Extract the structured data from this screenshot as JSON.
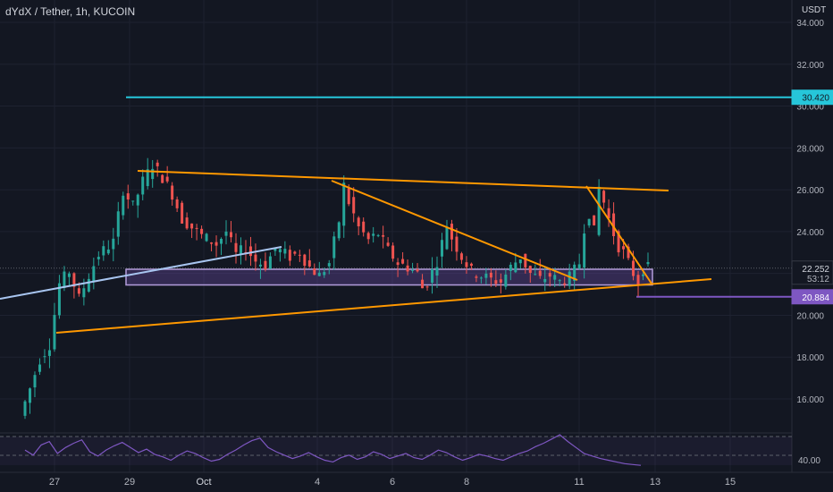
{
  "header": {
    "title": "dYdX / Tether, 1h, KUCOIN"
  },
  "price_axis": {
    "unit": "USDT"
  },
  "colors": {
    "background": "#131722",
    "grid": "#1e2230",
    "up": "#26a69a",
    "down": "#ef5350",
    "trend": "#ff9800",
    "resistance": "#26c6da",
    "support": "#7e57c2",
    "range_box": "#7e57c2",
    "blue_line": "#a8c5f0",
    "rsi": "#7e57c2",
    "axis_text": "#b2b5be"
  },
  "chart_data": {
    "type": "candlestick",
    "title": "dYdX / Tether, 1h, KUCOIN",
    "ylabel": "USDT",
    "y_ticks": [
      "16.000",
      "18.000",
      "20.000",
      "22.000",
      "24.000",
      "26.000",
      "28.000",
      "30.000",
      "32.000",
      "34.000"
    ],
    "x_ticks": [
      "27",
      "29",
      "Oct",
      "4",
      "6",
      "8",
      "11",
      "13",
      "15"
    ],
    "ylim": [
      14.5,
      35.0
    ],
    "price_labels": [
      {
        "value": "30.420",
        "color": "#26c6da",
        "text": "#131722"
      },
      {
        "value": "22.252",
        "color": "#131722",
        "text": "#d1d4dc",
        "sub": "53:12"
      },
      {
        "value": "20.884",
        "color": "#7e57c2",
        "text": "#ffffff"
      }
    ],
    "levels": [
      {
        "name": "resistance",
        "value": 30.42,
        "x_start": "Sep 29",
        "x_end": "Oct 15+"
      },
      {
        "name": "support",
        "value": 20.884,
        "x_start": "Oct 12",
        "x_end": "Oct 15+"
      }
    ],
    "range_box": {
      "top": 22.2,
      "bottom": 21.45,
      "x_start": "Sep 29",
      "x_end": "Oct 12"
    },
    "price_path": [
      [
        0,
        15.2
      ],
      [
        2,
        16.5
      ],
      [
        4,
        17.9
      ],
      [
        6,
        18.6
      ],
      [
        8,
        21.5
      ],
      [
        10,
        22.1
      ],
      [
        12,
        20.8
      ],
      [
        14,
        21.9
      ],
      [
        16,
        22.9
      ],
      [
        19,
        23.5
      ],
      [
        21,
        26.0
      ],
      [
        23,
        25.2
      ],
      [
        25,
        26.4
      ],
      [
        27,
        27.2
      ],
      [
        29,
        26.6
      ],
      [
        31,
        25.8
      ],
      [
        33,
        24.6
      ],
      [
        35,
        24.2
      ],
      [
        37,
        23.8
      ],
      [
        40,
        23.4
      ],
      [
        42,
        24.0
      ],
      [
        44,
        22.9
      ],
      [
        46,
        23.2
      ],
      [
        48,
        22.6
      ],
      [
        50,
        22.4
      ],
      [
        52,
        23.2
      ],
      [
        55,
        22.8
      ],
      [
        57,
        23.0
      ],
      [
        59,
        22.3
      ],
      [
        61,
        21.9
      ],
      [
        63,
        22.5
      ],
      [
        65,
        24.5
      ],
      [
        66,
        26.2
      ],
      [
        67,
        25.4
      ],
      [
        69,
        24.2
      ],
      [
        71,
        23.6
      ],
      [
        73,
        23.9
      ],
      [
        75,
        23.1
      ],
      [
        77,
        22.5
      ],
      [
        79,
        22.3
      ],
      [
        81,
        22.0
      ],
      [
        82,
        21.3
      ],
      [
        83,
        21.6
      ],
      [
        85,
        22.6
      ],
      [
        87,
        24.3
      ],
      [
        88,
        23.7
      ],
      [
        90,
        22.8
      ],
      [
        92,
        22.1
      ],
      [
        94,
        21.9
      ],
      [
        96,
        21.7
      ],
      [
        98,
        21.6
      ],
      [
        100,
        22.3
      ],
      [
        102,
        22.8
      ],
      [
        104,
        22.0
      ],
      [
        106,
        21.7
      ],
      [
        108,
        21.9
      ],
      [
        110,
        21.6
      ],
      [
        112,
        21.8
      ],
      [
        114,
        22.5
      ],
      [
        115,
        24.2
      ],
      [
        116,
        24.9
      ],
      [
        117,
        24.0
      ],
      [
        118,
        26.1
      ],
      [
        119,
        25.4
      ],
      [
        120,
        24.6
      ],
      [
        121,
        23.9
      ],
      [
        122,
        23.3
      ],
      [
        123,
        23.0
      ],
      [
        124,
        22.5
      ],
      [
        125,
        22.0
      ],
      [
        126,
        21.6
      ],
      [
        127,
        22.25
      ]
    ],
    "trendlines": [
      {
        "name": "upper-triangle",
        "from": [
          154,
          191
        ],
        "to": [
          748,
          213
        ]
      },
      {
        "name": "lower-triangle",
        "from": [
          63,
          372
        ],
        "to": [
          796,
          312
        ]
      },
      {
        "name": "descending-1",
        "from": [
          371,
          202
        ],
        "to": [
          646,
          313
        ]
      },
      {
        "name": "descending-2",
        "from": [
          656,
          208
        ],
        "to": [
          729,
          317
        ]
      },
      {
        "name": "blue-line",
        "from": [
          0,
          334
        ],
        "to": [
          315,
          276
        ]
      }
    ],
    "indicator": {
      "name": "RSI",
      "tick": "40.00",
      "values": [
        52,
        46,
        58,
        62,
        48,
        55,
        60,
        64,
        50,
        45,
        52,
        57,
        61,
        55,
        49,
        53,
        47,
        44,
        40,
        46,
        51,
        48,
        43,
        39,
        41,
        47,
        52,
        58,
        63,
        66,
        55,
        50,
        46,
        42,
        45,
        49,
        44,
        40,
        38,
        43,
        46,
        41,
        44,
        50,
        47,
        42,
        45,
        48,
        43,
        41,
        46,
        52,
        49,
        44,
        40,
        43,
        47,
        45,
        42,
        40,
        44,
        48,
        51,
        56,
        60,
        65,
        70,
        62,
        55,
        48,
        45,
        42,
        40,
        38,
        36,
        35,
        34
      ]
    }
  }
}
